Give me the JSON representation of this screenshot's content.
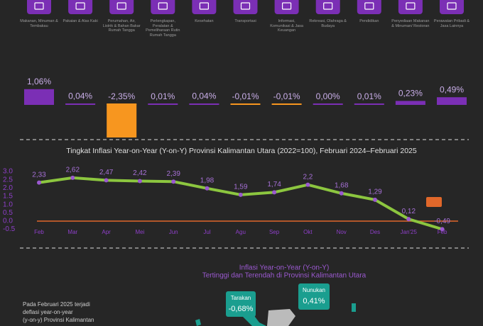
{
  "chart_data": [
    {
      "type": "bar",
      "categories": [
        "Makanan, Minuman & Tembakau",
        "Pakaian & Alas Kaki",
        "Perumahan, Air, Listrik & Bahan Bakar Rumah Tangga",
        "Perlengkapan, Peralatan & Pemeliharaan Rutin Rumah Tangga",
        "Kesehatan",
        "Transportasi",
        "Informasi, Komunikasi & Jasa Keuangan",
        "Rekreasi, Olahraga & Budaya",
        "Pendidikan",
        "Penyediaan Makanan & Minuman/ Restoran",
        "Perawatan Pribadi & Jasa Lainnya"
      ],
      "values": [
        1.06,
        0.04,
        -2.35,
        0.01,
        0.04,
        -0.01,
        -0.01,
        0.0,
        0.01,
        0.23,
        0.49
      ],
      "value_labels": [
        "1,06%",
        "0,04%",
        "-2,35%",
        "0,01%",
        "0,04%",
        "-0,01%",
        "-0,01%",
        "0,00%",
        "0,01%",
        "0,23%",
        "0,49%"
      ],
      "color": "#7b2fb5",
      "negative_color": "#f7961f"
    },
    {
      "type": "line",
      "title": "Tingkat Inflasi Year-on-Year (Y-on-Y) Provinsi Kalimantan Utara (2022=100), Februari 2024–Februari 2025",
      "categories": [
        "Feb",
        "Mar",
        "Apr",
        "Mei",
        "Jun",
        "Jul",
        "Agu",
        "Sep",
        "Okt",
        "Nov",
        "Des",
        "Jan'25",
        "Feb"
      ],
      "values": [
        2.33,
        2.62,
        2.47,
        2.42,
        2.39,
        1.98,
        1.59,
        1.74,
        2.2,
        1.68,
        1.29,
        0.12,
        -0.49
      ],
      "value_labels": [
        "2,33",
        "2,62",
        "2,47",
        "2,42",
        "2,39",
        "1,98",
        "1,59",
        "1,74",
        "2,2",
        "1,68",
        "1,29",
        "0,12",
        "-0,49"
      ],
      "color": "#8cc63f",
      "marker_color": "#9b59d0",
      "zero_line_color": "#e0672a",
      "ylim": [
        -0.5,
        3.0
      ],
      "yticks": [
        {
          "value": 3,
          "label": "3.0"
        },
        {
          "value": 2.5,
          "label": "2.5"
        },
        {
          "value": 2,
          "label": "2.0"
        },
        {
          "value": 1.5,
          "label": "1.5"
        },
        {
          "value": 1,
          "label": "1.0"
        },
        {
          "value": 0.5,
          "label": "0.5"
        },
        {
          "value": 0,
          "label": "0.0"
        },
        {
          "value": -0.5,
          "label": "-0.5"
        }
      ]
    }
  ],
  "section": {
    "title_line1": "Inflasi Year-on-Year (Y-on-Y)",
    "title_line2": "Tertinggi dan Terendah di Provinsi Kalimantan Utara",
    "paragraph": [
      "Pada Februari 2025 terjadi",
      "deflasi year-on-year",
      "(y-on-y) Provinsi Kalimantan"
    ],
    "callouts": [
      {
        "name": "Tarakan",
        "label": "-0,68%"
      },
      {
        "name": "Nunukan",
        "label": "0,41%"
      }
    ]
  }
}
